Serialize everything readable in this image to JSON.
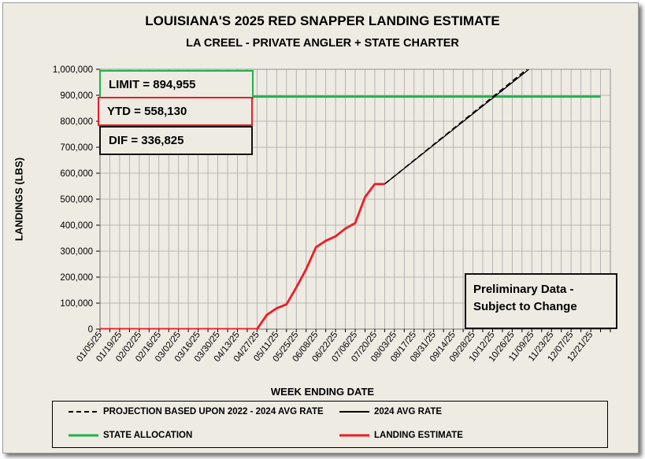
{
  "chart_data": {
    "type": "line",
    "title": "LOUISIANA'S 2025 RED SNAPPER LANDING ESTIMATE",
    "subtitle": "LA CREEL - PRIVATE ANGLER + STATE CHARTER",
    "xlabel": "WEEK ENDING DATE",
    "ylabel": "LANDINGS (LBS)",
    "ylim": [
      0,
      1000000
    ],
    "ytick_step": 100000,
    "yticks": [
      "0",
      "100,000",
      "200,000",
      "300,000",
      "400,000",
      "500,000",
      "600,000",
      "700,000",
      "800,000",
      "900,000",
      "1,000,000"
    ],
    "weeks": 52,
    "xtick_labels": [
      "01/05/25",
      "01/19/25",
      "02/02/25",
      "02/16/25",
      "03/02/25",
      "03/16/25",
      "03/30/25",
      "04/13/25",
      "04/27/25",
      "05/11/25",
      "05/25/25",
      "06/08/25",
      "06/22/25",
      "07/06/25",
      "07/20/25",
      "08/03/25",
      "08/17/25",
      "08/31/25",
      "09/14/25",
      "09/28/25",
      "10/12/25",
      "10/26/25",
      "11/09/25",
      "11/23/25",
      "12/07/25",
      "12/21/25"
    ],
    "series": [
      {
        "name": "LANDING ESTIMATE",
        "color": "#ee1c25",
        "style": "solid",
        "x": [
          0,
          1,
          2,
          3,
          4,
          5,
          6,
          7,
          8,
          9,
          10,
          11,
          12,
          13,
          14,
          15,
          16,
          17,
          18,
          19,
          20,
          21,
          22,
          23,
          24,
          25,
          26,
          27,
          28,
          29
        ],
        "values": [
          0,
          0,
          0,
          0,
          0,
          0,
          0,
          0,
          0,
          0,
          0,
          0,
          0,
          0,
          0,
          0,
          0,
          55000,
          80000,
          95000,
          160000,
          230000,
          315000,
          340000,
          357000,
          387000,
          408000,
          508000,
          558130,
          558130
        ]
      },
      {
        "name": "PROJECTION BASED UPON 2022 - 2024 AVG RATE",
        "color": "#000000",
        "style": "dashed",
        "x": [
          29,
          43.5
        ],
        "values": [
          558130,
          1000000
        ]
      },
      {
        "name": "2024 AVG RATE",
        "color": "#000000",
        "style": "solid",
        "x": [
          29,
          43.7
        ],
        "values": [
          558130,
          1000000
        ]
      },
      {
        "name": "STATE ALLOCATION",
        "color": "#22b14c",
        "style": "solid",
        "x": [
          0,
          51
        ],
        "values": [
          894955,
          894955
        ]
      }
    ],
    "annotations": {
      "limit": "LIMIT = 894,955",
      "ytd": "YTD = 558,130",
      "dif": "DIF = 336,825",
      "note_line1": "Preliminary Data -",
      "note_line2": "Subject to Change"
    }
  },
  "legend": {
    "projection": "PROJECTION BASED UPON 2022 - 2024 AVG RATE",
    "avg2024": "2024 AVG RATE",
    "allocation": "STATE ALLOCATION",
    "estimate": "LANDING ESTIMATE"
  }
}
